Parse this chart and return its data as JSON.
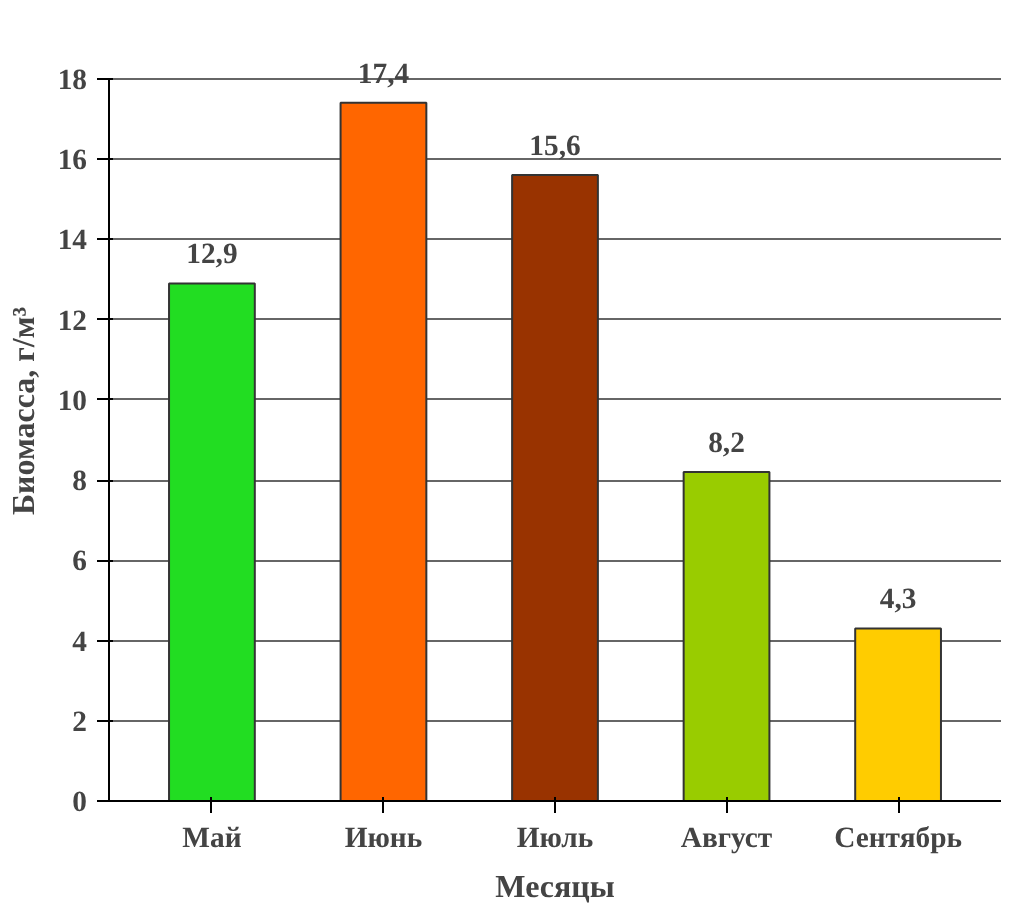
{
  "chart_data": {
    "type": "bar",
    "xlabel": "Месяцы",
    "ylabel": "Биомасса, г/м³",
    "categories": [
      "Май",
      "Июнь",
      "Июль",
      "Август",
      "Сентябрь"
    ],
    "values": [
      12.9,
      17.4,
      15.6,
      8.2,
      4.3
    ],
    "colors": [
      "#22dd22",
      "#ff6600",
      "#993300",
      "#99cc00",
      "#ffcc00"
    ],
    "value_labels": [
      "12,9",
      "17,4",
      "15,6",
      "8,2",
      "4,3"
    ],
    "ylim": [
      0,
      18
    ],
    "yticks": [
      0,
      2,
      4,
      6,
      8,
      10,
      12,
      14,
      16,
      18
    ],
    "grid": "y"
  }
}
